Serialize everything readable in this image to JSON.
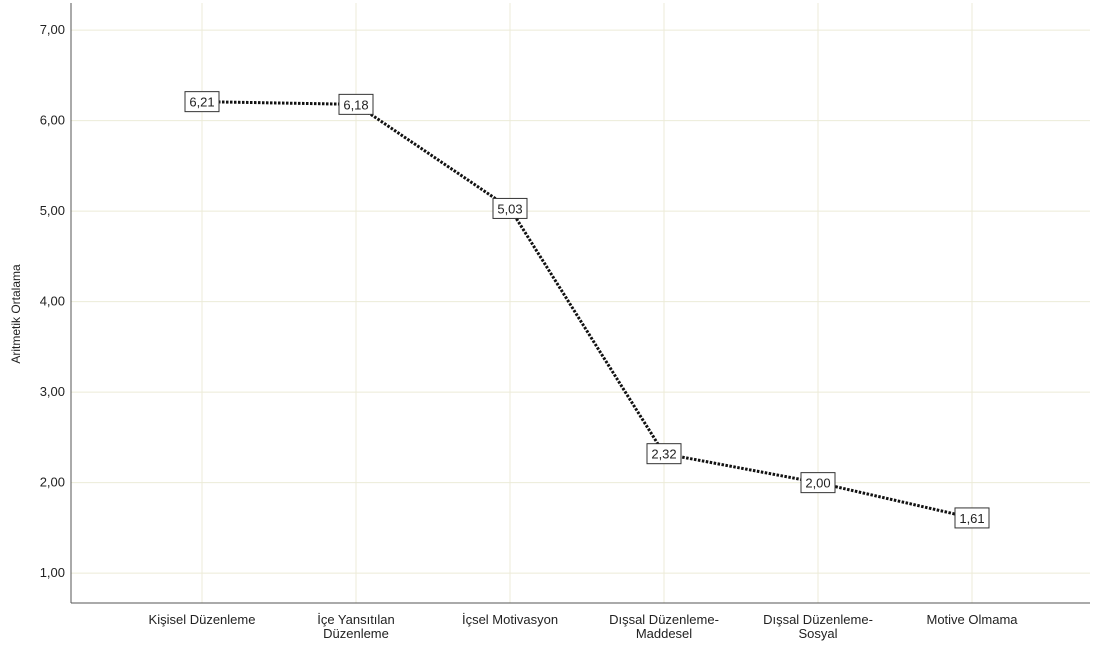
{
  "chart_data": {
    "type": "line",
    "categories": [
      [
        "Kişisel Düzenleme"
      ],
      [
        "İçe Yansıtılan",
        "Düzenleme"
      ],
      [
        "İçsel Motivasyon"
      ],
      [
        "Dışsal Düzenleme-",
        "Maddesel"
      ],
      [
        "Dışsal Düzenleme-",
        "Sosyal"
      ],
      [
        "Motive Olmama"
      ]
    ],
    "values": [
      6.21,
      6.18,
      5.03,
      2.32,
      2.0,
      1.61
    ],
    "data_labels": [
      "6,21",
      "6,18",
      "5,03",
      "2,32",
      "2,00",
      "1,61"
    ],
    "ylabel": "Aritmetik Ortalama",
    "yticks": [
      1,
      2,
      3,
      4,
      5,
      6,
      7
    ],
    "ytick_labels": [
      "1,00",
      "2,00",
      "3,00",
      "4,00",
      "5,00",
      "6,00",
      "7,00"
    ],
    "ylim": [
      0.67,
      7.3
    ],
    "grid": true,
    "line_style": "dotted",
    "colors": {
      "line": "#111111",
      "grid": "#ecebd8",
      "axis": "#555555"
    }
  }
}
